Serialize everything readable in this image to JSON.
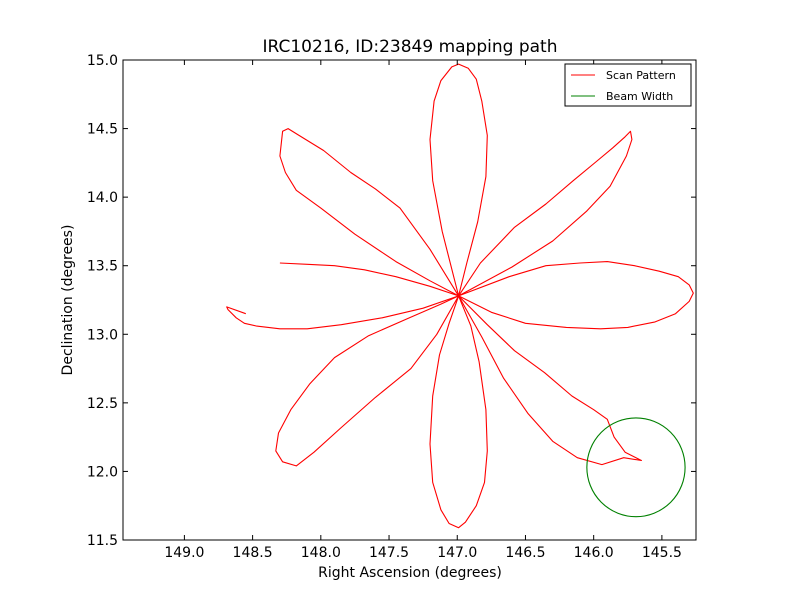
{
  "chart_data": {
    "type": "line",
    "title": "IRC10216, ID:23849 mapping path",
    "xlabel": "Right Ascension (degrees)",
    "ylabel": "Declination (degrees)",
    "xlim": [
      149.45,
      145.25
    ],
    "ylim": [
      11.5,
      15.0
    ],
    "x_ticks": [
      149.0,
      148.5,
      148.0,
      147.5,
      147.0,
      146.5,
      146.0,
      145.5
    ],
    "x_tick_labels": [
      "149.0",
      "148.5",
      "148.0",
      "147.5",
      "147.0",
      "146.5",
      "146.0",
      "145.5"
    ],
    "y_ticks": [
      11.5,
      12.0,
      12.5,
      13.0,
      13.5,
      14.0,
      14.5,
      15.0
    ],
    "y_tick_labels": [
      "11.5",
      "12.0",
      "12.5",
      "13.0",
      "13.5",
      "14.0",
      "14.5",
      "15.0"
    ],
    "grid": false,
    "legend_position": "top-right",
    "center": {
      "ra": 146.99,
      "dec": 13.28
    },
    "series": [
      {
        "name": "Scan Pattern",
        "color": "#ff0000",
        "type": "rosette-path",
        "petals": [
          {
            "points": [
              [
                146.99,
                13.28
              ],
              [
                147.2,
                13.62
              ],
              [
                147.42,
                13.92
              ],
              [
                147.6,
                14.06
              ],
              [
                147.78,
                14.18
              ],
              [
                147.98,
                14.34
              ],
              [
                148.16,
                14.45
              ],
              [
                148.24,
                14.5
              ],
              [
                148.28,
                14.48
              ],
              [
                148.3,
                14.3
              ],
              [
                148.26,
                14.18
              ],
              [
                148.18,
                14.05
              ],
              [
                148.0,
                13.92
              ],
              [
                147.75,
                13.73
              ],
              [
                147.45,
                13.53
              ],
              [
                147.2,
                13.39
              ],
              [
                146.99,
                13.28
              ]
            ]
          },
          {
            "points": [
              [
                146.99,
                13.28
              ],
              [
                147.11,
                13.75
              ],
              [
                147.18,
                14.12
              ],
              [
                147.2,
                14.42
              ],
              [
                147.17,
                14.7
              ],
              [
                147.12,
                14.85
              ],
              [
                147.04,
                14.95
              ],
              [
                146.99,
                14.97
              ],
              [
                146.92,
                14.94
              ],
              [
                146.86,
                14.86
              ],
              [
                146.82,
                14.7
              ],
              [
                146.78,
                14.45
              ],
              [
                146.79,
                14.15
              ],
              [
                146.85,
                13.82
              ],
              [
                146.93,
                13.52
              ],
              [
                146.99,
                13.28
              ]
            ]
          },
          {
            "points": [
              [
                146.99,
                13.28
              ],
              [
                146.83,
                13.52
              ],
              [
                146.58,
                13.78
              ],
              [
                146.35,
                13.95
              ],
              [
                146.15,
                14.12
              ],
              [
                145.98,
                14.26
              ],
              [
                145.86,
                14.36
              ],
              [
                145.77,
                14.44
              ],
              [
                145.73,
                14.48
              ],
              [
                145.72,
                14.42
              ],
              [
                145.76,
                14.3
              ],
              [
                145.88,
                14.08
              ],
              [
                146.05,
                13.9
              ],
              [
                146.3,
                13.68
              ],
              [
                146.6,
                13.49
              ],
              [
                146.99,
                13.28
              ]
            ]
          },
          {
            "points": [
              [
                146.99,
                13.28
              ],
              [
                146.62,
                13.42
              ],
              [
                146.35,
                13.5
              ],
              [
                146.1,
                13.52
              ],
              [
                145.9,
                13.53
              ],
              [
                145.7,
                13.5
              ],
              [
                145.52,
                13.46
              ],
              [
                145.38,
                13.42
              ],
              [
                145.3,
                13.36
              ],
              [
                145.27,
                13.3
              ],
              [
                145.3,
                13.24
              ],
              [
                145.4,
                13.15
              ],
              [
                145.55,
                13.09
              ],
              [
                145.75,
                13.05
              ],
              [
                145.95,
                13.04
              ],
              [
                146.2,
                13.05
              ],
              [
                146.5,
                13.08
              ],
              [
                146.75,
                13.16
              ],
              [
                146.99,
                13.28
              ]
            ]
          },
          {
            "points": [
              [
                146.99,
                13.28
              ],
              [
                146.78,
                13.07
              ],
              [
                146.58,
                12.88
              ],
              [
                146.36,
                12.72
              ],
              [
                146.16,
                12.55
              ],
              [
                146.0,
                12.45
              ],
              [
                145.9,
                12.38
              ],
              [
                145.85,
                12.25
              ],
              [
                145.77,
                12.14
              ],
              [
                145.65,
                12.08
              ],
              [
                145.78,
                12.1
              ],
              [
                145.94,
                12.05
              ],
              [
                146.12,
                12.1
              ],
              [
                146.3,
                12.22
              ],
              [
                146.48,
                12.42
              ],
              [
                146.66,
                12.68
              ],
              [
                146.82,
                12.98
              ],
              [
                146.99,
                13.28
              ]
            ]
          },
          {
            "points": [
              [
                146.99,
                13.28
              ],
              [
                146.9,
                13.06
              ],
              [
                146.84,
                12.8
              ],
              [
                146.79,
                12.45
              ],
              [
                146.78,
                12.15
              ],
              [
                146.8,
                11.92
              ],
              [
                146.86,
                11.75
              ],
              [
                146.94,
                11.63
              ],
              [
                146.99,
                11.59
              ],
              [
                147.06,
                11.62
              ],
              [
                147.12,
                11.72
              ],
              [
                147.18,
                11.92
              ],
              [
                147.2,
                12.2
              ],
              [
                147.18,
                12.55
              ],
              [
                147.13,
                12.85
              ],
              [
                147.06,
                13.08
              ],
              [
                146.99,
                13.28
              ]
            ]
          },
          {
            "points": [
              [
                146.99,
                13.28
              ],
              [
                147.15,
                13.0
              ],
              [
                147.34,
                12.75
              ],
              [
                147.6,
                12.54
              ],
              [
                147.85,
                12.32
              ],
              [
                148.05,
                12.14
              ],
              [
                148.18,
                12.04
              ],
              [
                148.28,
                12.07
              ],
              [
                148.33,
                12.15
              ],
              [
                148.31,
                12.28
              ],
              [
                148.22,
                12.45
              ],
              [
                148.08,
                12.64
              ],
              [
                147.9,
                12.83
              ],
              [
                147.65,
                12.99
              ],
              [
                147.35,
                13.12
              ],
              [
                147.12,
                13.22
              ],
              [
                146.99,
                13.28
              ]
            ]
          },
          {
            "points": [
              [
                146.99,
                13.28
              ],
              [
                147.25,
                13.19
              ],
              [
                147.55,
                13.12
              ],
              [
                147.85,
                13.07
              ],
              [
                148.1,
                13.04
              ],
              [
                148.3,
                13.04
              ],
              [
                148.47,
                13.06
              ],
              [
                148.56,
                13.08
              ],
              [
                148.62,
                13.12
              ],
              [
                148.68,
                13.18
              ],
              [
                148.69,
                13.2
              ],
              [
                148.55,
                13.15
              ]
            ]
          },
          {
            "points": [
              [
                146.99,
                13.28
              ],
              [
                147.2,
                13.35
              ],
              [
                147.45,
                13.42
              ],
              [
                147.68,
                13.47
              ],
              [
                147.9,
                13.5
              ],
              [
                148.1,
                13.51
              ],
              [
                148.3,
                13.52
              ]
            ]
          }
        ]
      },
      {
        "name": "Beam Width",
        "color": "#008000",
        "type": "circle",
        "center": [
          145.69,
          12.03
        ],
        "radius": 0.36
      }
    ]
  }
}
